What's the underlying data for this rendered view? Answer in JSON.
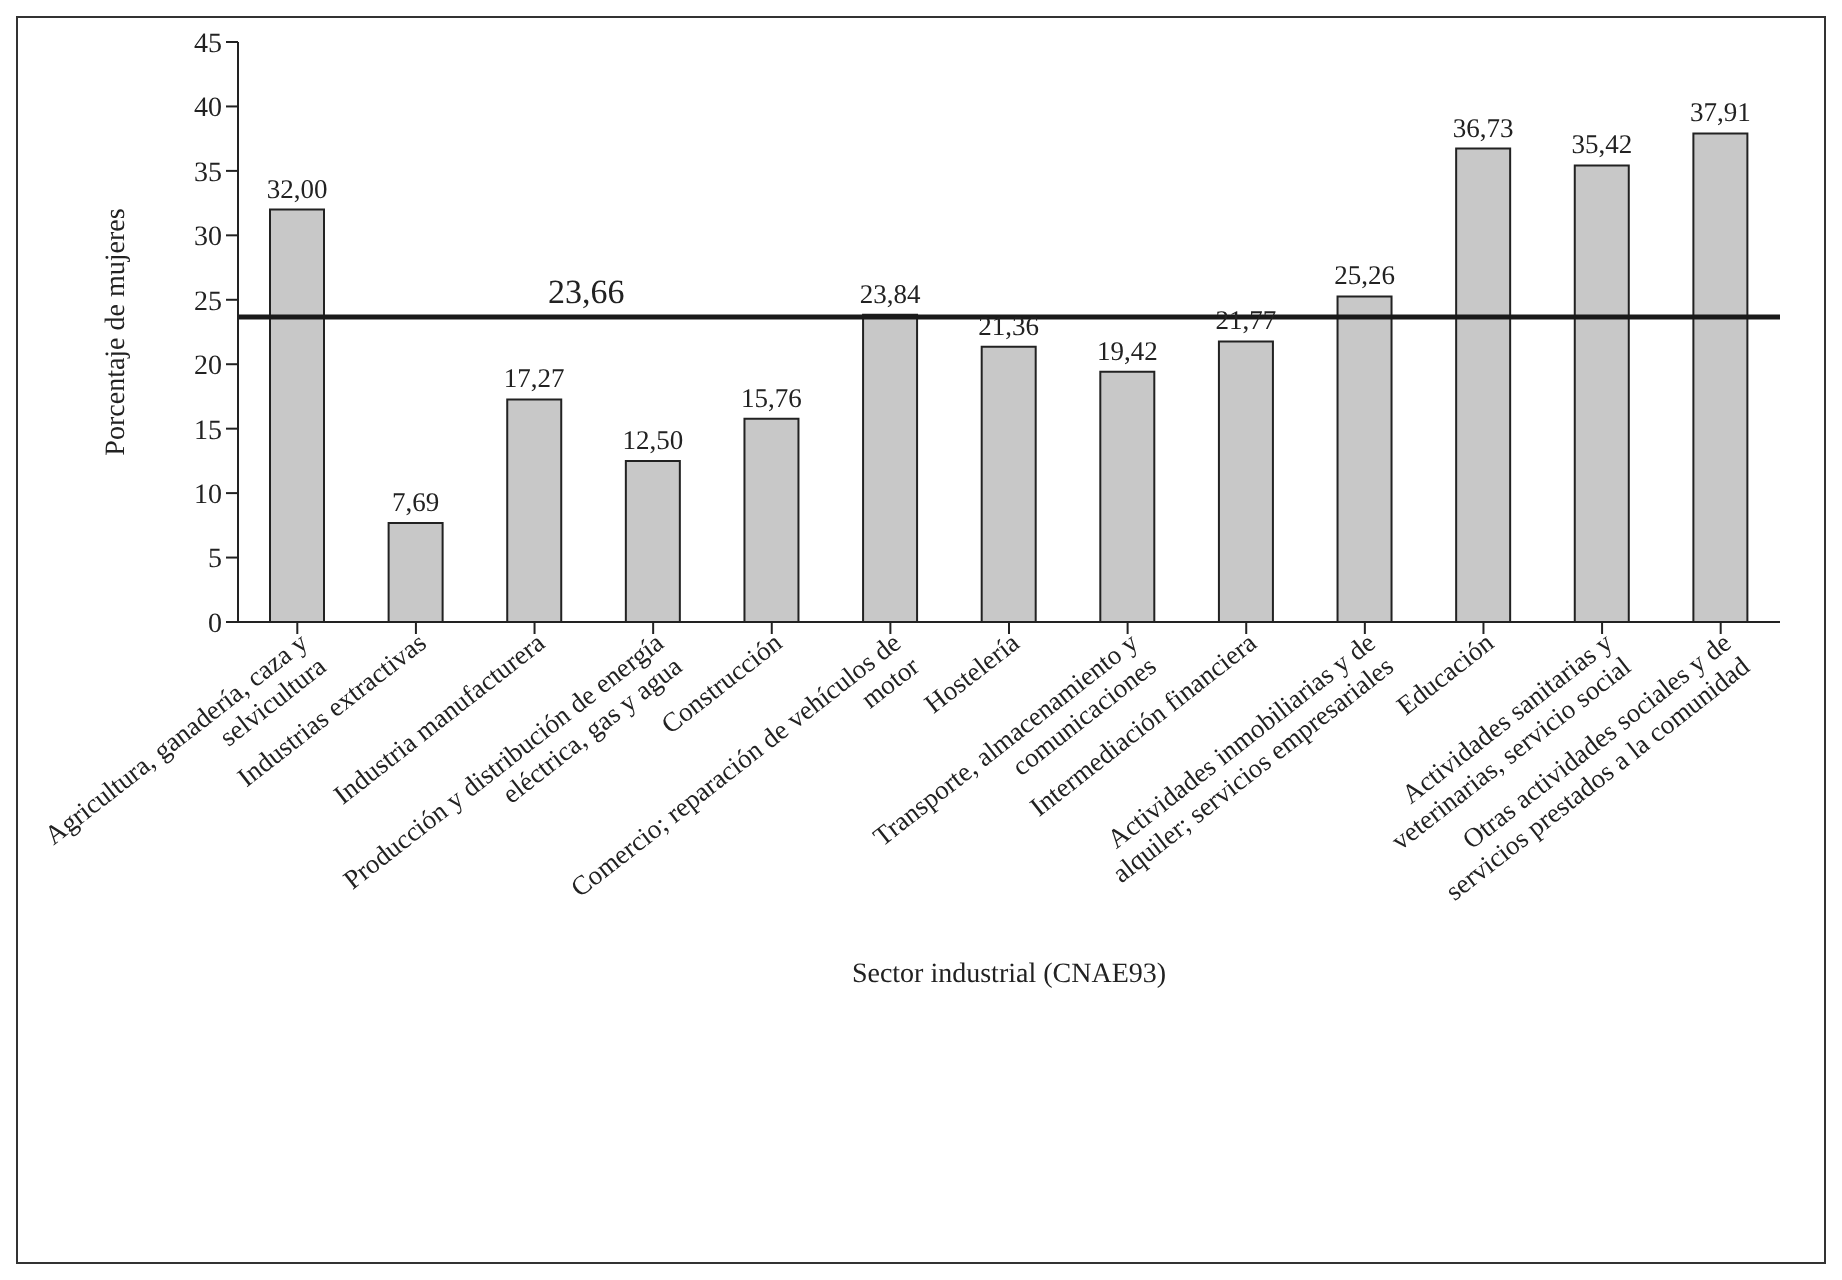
{
  "chart_data": {
    "type": "bar",
    "xlabel": "Sector industrial (CNAE93)",
    "ylabel": "Porcentaje de mujeres",
    "categories": [
      "Agricultura,  ganadería, caza y selvicultura",
      "Industrias extractivas",
      "Industria manufacturera",
      "Producción y distribución de energía eléctrica, gas y agua",
      "Construcción",
      "Comercio; reparación de vehículos de motor",
      "Hostelería",
      "Transporte, almacenamiento y comunicaciones",
      "Intermediación financiera",
      "Actividades inmobiliarias y de alquiler; servicios empresariales",
      "Educación",
      "Actividades sanitarias y veterinarias, servicio social",
      "Otras actividades sociales y de servicios prestados a la comunidad"
    ],
    "values": [
      32.0,
      7.69,
      17.27,
      12.5,
      15.76,
      23.84,
      21.36,
      19.42,
      21.77,
      25.26,
      36.73,
      35.42,
      37.91
    ],
    "value_labels": [
      "32,00",
      "7,69",
      "17,27",
      "12,50",
      "15,76",
      "23,84",
      "21,36",
      "19,42",
      "21,77",
      "25,26",
      "36,73",
      "35,42",
      "37,91"
    ],
    "color": "#c8c8c8",
    "ylim": [
      0,
      45
    ],
    "yticks": [
      0,
      5,
      10,
      15,
      20,
      25,
      30,
      35,
      40,
      45
    ],
    "ref_lines": [
      {
        "axis": "y",
        "value": 23.66,
        "label": "23,66",
        "color": "#1a1a1a"
      }
    ]
  }
}
